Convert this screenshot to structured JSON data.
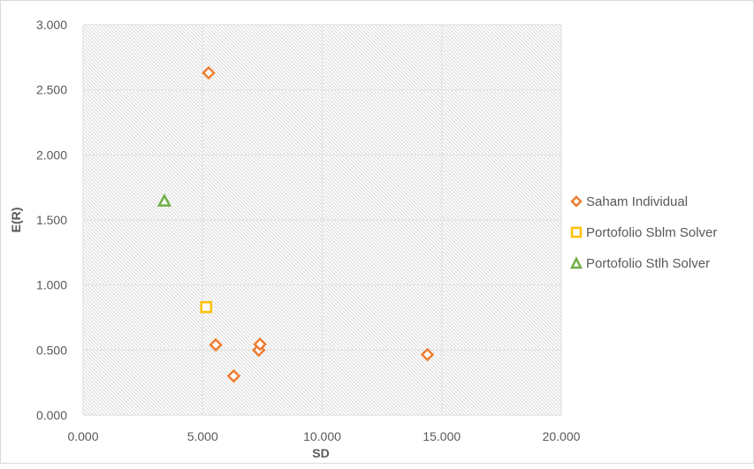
{
  "chart_data": {
    "type": "scatter",
    "title": "",
    "xlabel": "SD",
    "ylabel": "E(R)",
    "xlim": [
      0,
      20
    ],
    "ylim": [
      0,
      3
    ],
    "x_ticks": [
      "0.000",
      "5.000",
      "10.000",
      "15.000",
      "20.000"
    ],
    "y_ticks": [
      "0.000",
      "0.500",
      "1.000",
      "1.500",
      "2.000",
      "2.500",
      "3.000"
    ],
    "grid": true,
    "legend_position": "right",
    "series": [
      {
        "name": "Saham Individual",
        "marker": "diamond",
        "color": "#ED7D31",
        "points": [
          [
            5.25,
            2.63
          ],
          [
            5.55,
            0.54
          ],
          [
            6.3,
            0.3
          ],
          [
            7.35,
            0.5
          ],
          [
            7.4,
            0.545
          ],
          [
            14.4,
            0.465
          ]
        ]
      },
      {
        "name": "Portofolio Sblm Solver",
        "marker": "square",
        "color": "#FFC000",
        "points": [
          [
            5.15,
            0.83
          ]
        ]
      },
      {
        "name": "Portofolio Stlh Solver",
        "marker": "triangle",
        "color": "#70AD47",
        "points": [
          [
            3.4,
            1.645
          ]
        ]
      }
    ]
  }
}
